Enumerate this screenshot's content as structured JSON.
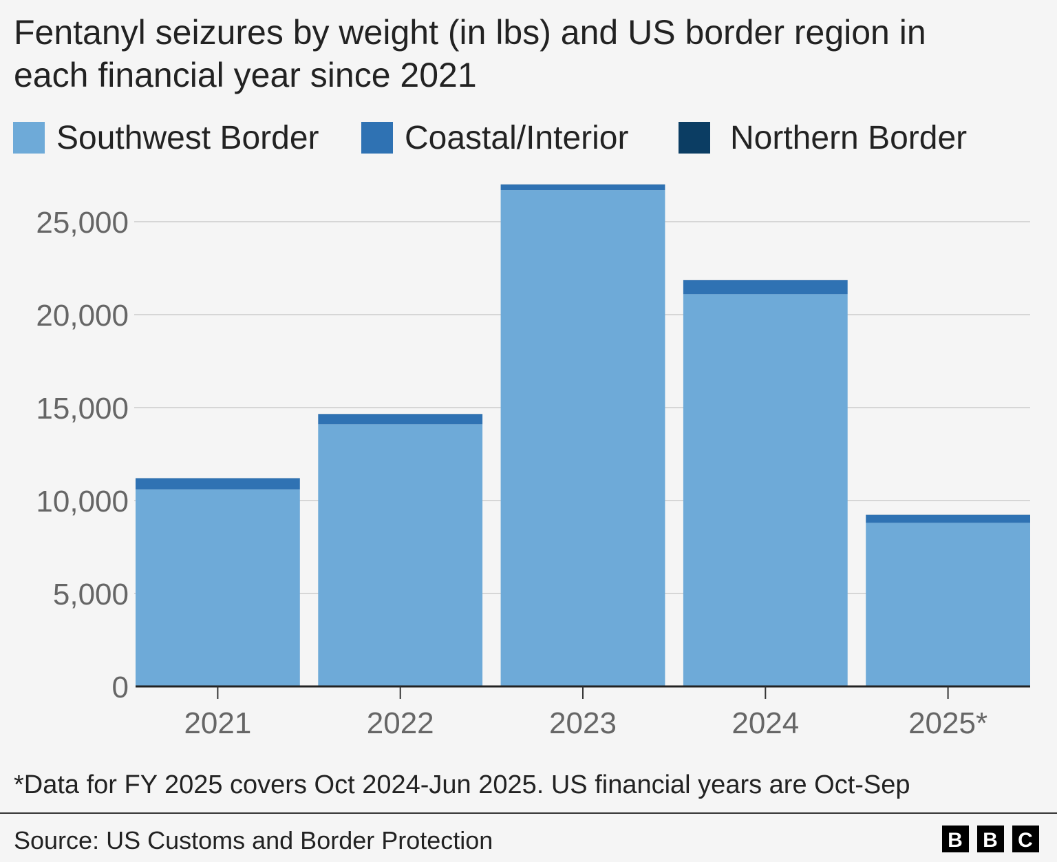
{
  "chart_data": {
    "type": "bar",
    "stacked": true,
    "title_lines": [
      "Fentanyl seizures by weight (in lbs) and US border region in",
      "each financial year since 2021"
    ],
    "categories": [
      "2021",
      "2022",
      "2023",
      "2024",
      "2025*"
    ],
    "series": [
      {
        "name": "Southwest Border",
        "color": "#6eaad8",
        "values": [
          10600,
          14100,
          26700,
          21100,
          8800
        ]
      },
      {
        "name": "Coastal/Interior",
        "color": "#2f72b3",
        "values": [
          600,
          550,
          300,
          750,
          430
        ]
      },
      {
        "name": "Northern Border",
        "color": "#0b3d63",
        "values": [
          5,
          5,
          5,
          5,
          5
        ]
      }
    ],
    "ylim": [
      0,
      25000
    ],
    "yticks": [
      0,
      5000,
      10000,
      15000,
      20000,
      25000
    ],
    "ytick_labels": [
      "0",
      "5,000",
      "10,000",
      "15,000",
      "20,000",
      "25,000"
    ],
    "xlabel": "",
    "ylabel": "",
    "grid": true,
    "legend_placement": "top-left",
    "note": "*Data for FY 2025 covers Oct 2024-Jun 2025. US financial years are Oct-Sep"
  },
  "footer": {
    "source": "Source: US Customs and Border Protection",
    "logo_letters": [
      "B",
      "B",
      "C"
    ]
  }
}
